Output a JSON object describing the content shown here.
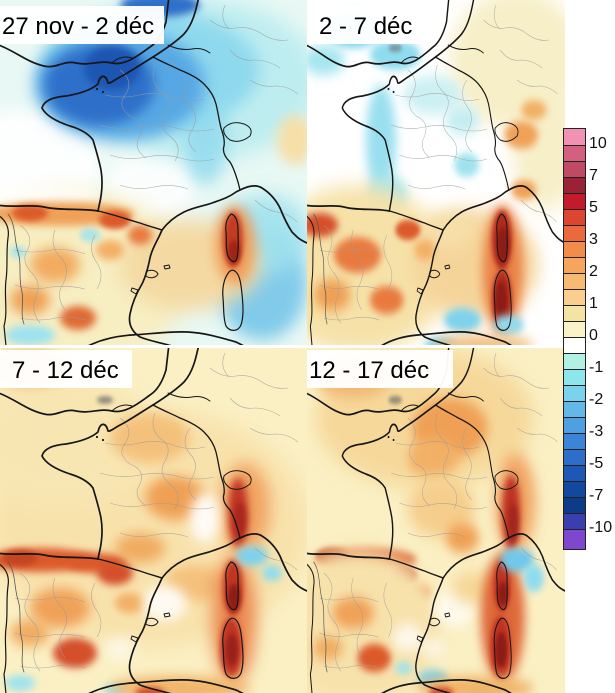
{
  "panels": [
    {
      "label": "27 nov - 2 déc"
    },
    {
      "label": "2 - 7 déc"
    },
    {
      "label": "7 - 12 déc"
    },
    {
      "label": "12 - 17 déc"
    }
  ],
  "colorbar": {
    "ticks": [
      "10",
      "7",
      "5",
      "3",
      "2",
      "1",
      "0",
      "-1",
      "-2",
      "-3",
      "-5",
      "-7",
      "-10"
    ],
    "bands": [
      "#F192B4",
      "#D4607F",
      "#BF4A64",
      "#9B2137",
      "#C31B2B",
      "#DC4530",
      "#EA6A3D",
      "#F28C4D",
      "#F5A55C",
      "#F7BA72",
      "#F9CE8E",
      "#F4E4A4",
      "#FBF3C8",
      "#FFFFFF",
      "#B2F0E4",
      "#8FE6EA",
      "#7BD2EC",
      "#63B8E8",
      "#4FA0E2",
      "#3C85D6",
      "#2C6EC8",
      "#1E58B6",
      "#13489F",
      "#0C3B87",
      "#3A3EAE",
      "#7F46CE"
    ]
  }
}
